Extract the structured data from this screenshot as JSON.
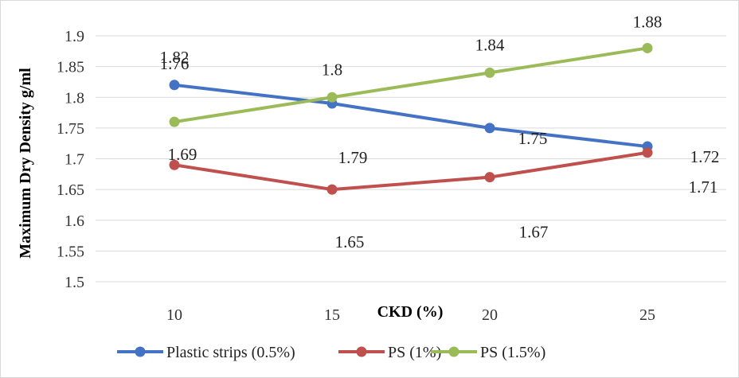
{
  "chart_data": {
    "type": "line",
    "categories": [
      "10",
      "15",
      "20",
      "25"
    ],
    "xlabel": "CKD (%)",
    "ylabel": "Maximum Dry Density g/ml",
    "ylim": [
      1.5,
      1.9
    ],
    "yticks": [
      "1.5",
      "1.55",
      "1.6",
      "1.65",
      "1.7",
      "1.75",
      "1.8",
      "1.85",
      "1.9"
    ],
    "grid": true,
    "legend_position": "bottom",
    "series": [
      {
        "name": "Plastic strips (0.5%)",
        "color": "#4472C4",
        "values": [
          1.82,
          1.79,
          1.75,
          1.72
        ],
        "labels": [
          "1.82",
          "1.79",
          "1.75",
          "1.72"
        ]
      },
      {
        "name": "PS (1%)",
        "color": "#C0504D",
        "values": [
          1.69,
          1.65,
          1.67,
          1.71
        ],
        "labels": [
          "1.69",
          "1.65",
          "1.67",
          "1.71"
        ]
      },
      {
        "name": "PS (1.5%)",
        "color": "#9BBB59",
        "values": [
          1.76,
          1.8,
          1.84,
          1.88
        ],
        "labels": [
          "1.76",
          "1.8",
          "1.84",
          "1.88"
        ]
      }
    ]
  }
}
